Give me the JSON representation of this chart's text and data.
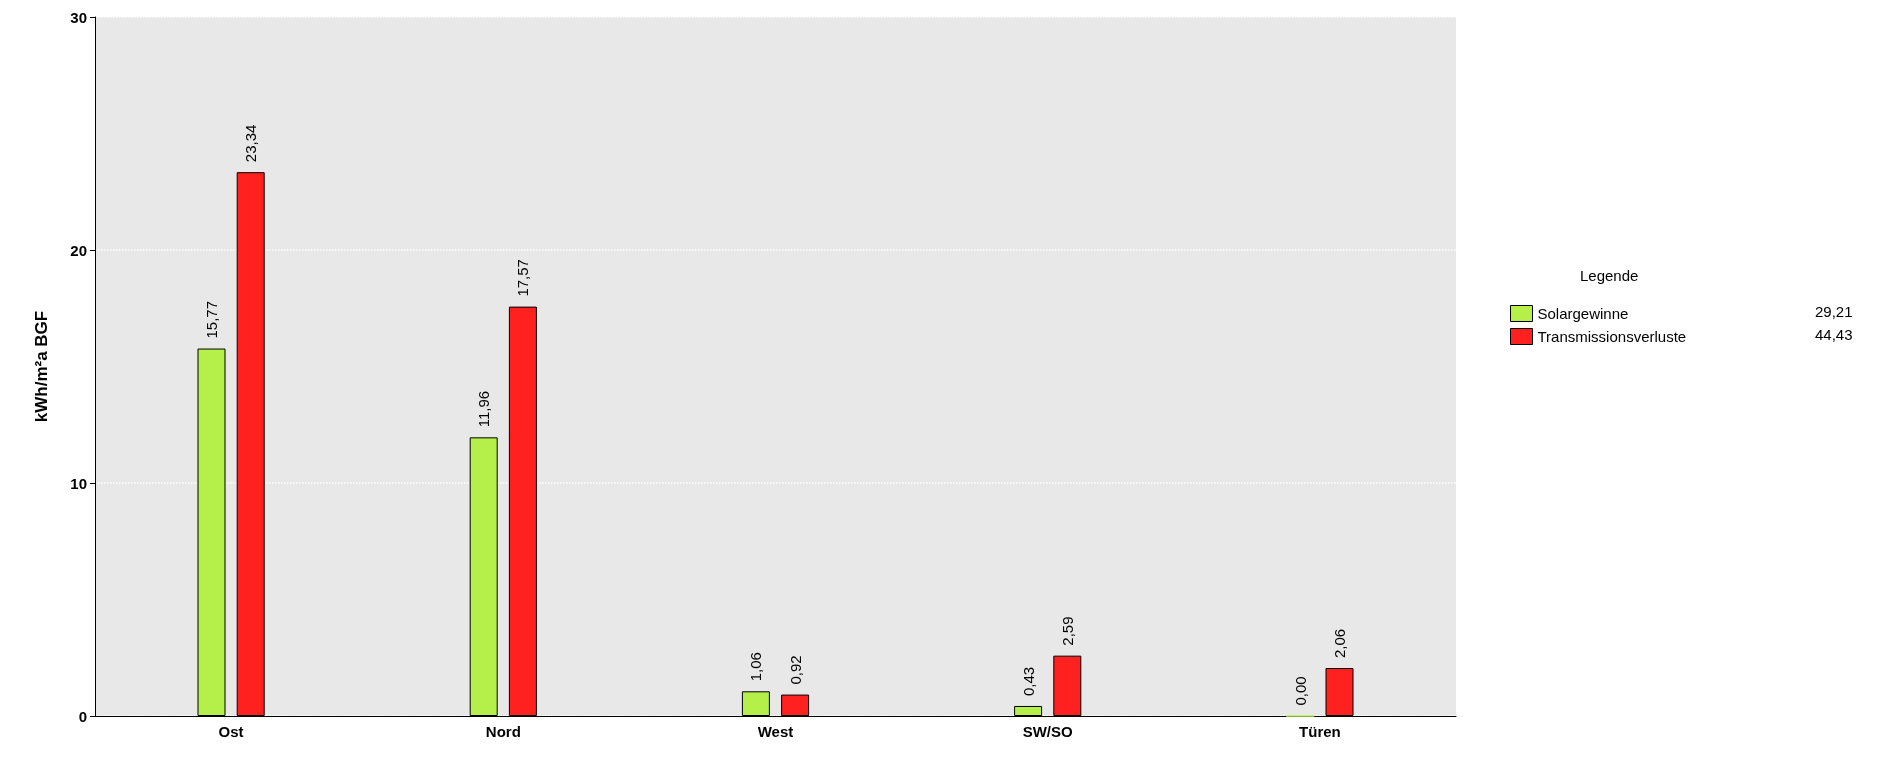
{
  "chart_data": {
    "type": "bar",
    "ylabel": "kWh/m²a BGF",
    "legend_title": "Legende",
    "categories": [
      "Ost",
      "Nord",
      "West",
      "SW/SO",
      "Türen"
    ],
    "series": [
      {
        "name": "Solargewinne",
        "color": "#b5f04a",
        "values": [
          15.77,
          11.96,
          1.06,
          0.43,
          0.0
        ],
        "value_labels": [
          "15,77",
          "11,96",
          "1,06",
          "0,43",
          "0,00"
        ]
      },
      {
        "name": "Transmissionsverluste",
        "color": "#ff2020",
        "values": [
          23.34,
          17.57,
          0.92,
          2.59,
          2.06
        ],
        "value_labels": [
          "23,34",
          "17,57",
          "0,92",
          "2,59",
          "2,06"
        ]
      }
    ],
    "annotations": [
      "29,21",
      "44,43"
    ],
    "ylim": [
      0,
      30
    ],
    "yticks": [
      0,
      10,
      20,
      30
    ],
    "grid": "y",
    "legend": "right"
  }
}
